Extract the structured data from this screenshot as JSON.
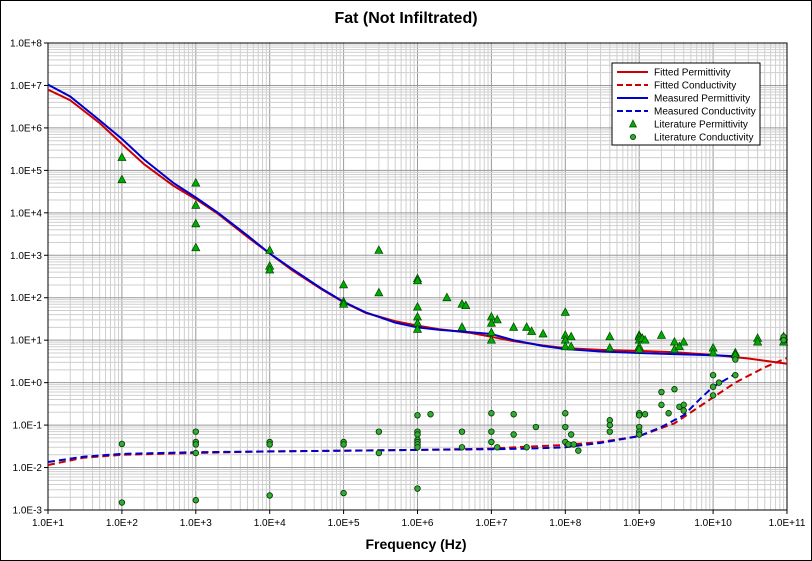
{
  "chart_data": {
    "type": "scatter",
    "title": "Fat (Not Infiltrated)",
    "xlabel": "Frequency (Hz)",
    "ylabel": "",
    "x_scale": "log",
    "y_scale": "log",
    "xlim": [
      10,
      100000000000
    ],
    "ylim": [
      0.001,
      100000000
    ],
    "x_ticks": [
      "1.0E+1",
      "1.0E+2",
      "1.0E+3",
      "1.0E+4",
      "1.0E+5",
      "1.0E+6",
      "1.0E+7",
      "1.0E+8",
      "1.0E+9",
      "1.0E+10",
      "1.0E+11"
    ],
    "y_ticks": [
      "1.0E-3",
      "1.0E-2",
      "1.0E-1",
      "1.0E+0",
      "1.0E+1",
      "1.0E+2",
      "1.0E+3",
      "1.0E+4",
      "1.0E+5",
      "1.0E+6",
      "1.0E+7",
      "1.0E+8"
    ],
    "grid": true,
    "legend_position": "top-right",
    "series": [
      {
        "name": "Fitted Permittivity",
        "style": "line",
        "color": "#cc0000",
        "dash": false,
        "points": [
          [
            10,
            8000000.0
          ],
          [
            20,
            4500000.0
          ],
          [
            50,
            1300000.0
          ],
          [
            100,
            420000.0
          ],
          [
            200,
            140000.0
          ],
          [
            500,
            43000.0
          ],
          [
            1000,
            21000.0
          ],
          [
            2000,
            9500.0
          ],
          [
            5000,
            2700.0
          ],
          [
            10000,
            1100.0
          ],
          [
            20000,
            450.0
          ],
          [
            50000,
            160.0
          ],
          [
            100000,
            78.0
          ],
          [
            200000,
            44.0
          ],
          [
            500000,
            28.0
          ],
          [
            1000000,
            22.0
          ],
          [
            2000000,
            18.0
          ],
          [
            5000000,
            15.0
          ],
          [
            10000000,
            12.0
          ],
          [
            20000000,
            9.5
          ],
          [
            50000000,
            7.5
          ],
          [
            100000000,
            6.5
          ],
          [
            300000000,
            5.9
          ],
          [
            1000000000,
            5.6
          ],
          [
            3000000000,
            5.2
          ],
          [
            10000000000,
            4.5
          ],
          [
            30000000000,
            3.7
          ],
          [
            100000000000,
            2.8
          ]
        ]
      },
      {
        "name": "Fitted Conductivity",
        "style": "line",
        "color": "#cc0000",
        "dash": true,
        "points": [
          [
            10,
            0.0115
          ],
          [
            30,
            0.017
          ],
          [
            100,
            0.02
          ],
          [
            1000,
            0.022
          ],
          [
            10000,
            0.024
          ],
          [
            100000,
            0.025
          ],
          [
            1000000,
            0.026
          ],
          [
            10000000,
            0.028
          ],
          [
            30000000,
            0.031
          ],
          [
            100000000,
            0.034
          ],
          [
            300000000,
            0.04
          ],
          [
            1000000000,
            0.055
          ],
          [
            3000000000,
            0.11
          ],
          [
            5000000000,
            0.2
          ],
          [
            10000000000,
            0.45
          ],
          [
            20000000000,
            1.0
          ],
          [
            50000000000,
            2.3
          ],
          [
            100000000000,
            3.8
          ]
        ]
      },
      {
        "name": "Measured Permittivity",
        "style": "line",
        "color": "#0000cc",
        "dash": false,
        "points": [
          [
            10,
            10500000.0
          ],
          [
            20,
            5500000.0
          ],
          [
            50,
            1500000.0
          ],
          [
            100,
            550000.0
          ],
          [
            200,
            180000.0
          ],
          [
            500,
            50000.0
          ],
          [
            1000,
            23000.0
          ],
          [
            2000,
            10000.0
          ],
          [
            5000,
            2900.0
          ],
          [
            10000,
            1100.0
          ],
          [
            20000,
            480.0
          ],
          [
            50000,
            165.0
          ],
          [
            100000,
            80.0
          ],
          [
            200000,
            45.0
          ],
          [
            500000,
            26.0
          ],
          [
            1000000,
            20.0
          ],
          [
            2000000,
            17.5
          ],
          [
            5000000,
            15.5
          ],
          [
            10000000,
            14.0
          ],
          [
            20000000,
            10.0
          ],
          [
            50000000,
            7.3
          ],
          [
            100000000,
            6.2
          ],
          [
            300000000,
            5.4
          ],
          [
            1000000000,
            5.0
          ],
          [
            3000000000,
            4.7
          ],
          [
            10000000000,
            4.4
          ],
          [
            20000000000,
            4.2
          ]
        ]
      },
      {
        "name": "Measured Conductivity",
        "style": "line",
        "color": "#0000cc",
        "dash": true,
        "points": [
          [
            10,
            0.0135
          ],
          [
            30,
            0.018
          ],
          [
            100,
            0.021
          ],
          [
            1000,
            0.023
          ],
          [
            10000,
            0.024
          ],
          [
            100000,
            0.025
          ],
          [
            1000000,
            0.026
          ],
          [
            10000000,
            0.027
          ],
          [
            30000000,
            0.028
          ],
          [
            100000000,
            0.03
          ],
          [
            300000000,
            0.038
          ],
          [
            1000000000,
            0.055
          ],
          [
            2000000000,
            0.09
          ],
          [
            4000000000,
            0.17
          ],
          [
            7000000000,
            0.45
          ],
          [
            10000000000,
            0.8
          ],
          [
            20000000000,
            1.6
          ]
        ]
      },
      {
        "name": "Literature Permittivity",
        "style": "triangle",
        "color": "#00aa00",
        "points": [
          [
            100,
            200000.0
          ],
          [
            100,
            60000.0
          ],
          [
            1000,
            50000.0
          ],
          [
            1000,
            15000.0
          ],
          [
            1000,
            5500.0
          ],
          [
            1000,
            1500.0
          ],
          [
            10000,
            1300.0
          ],
          [
            10000,
            550.0
          ],
          [
            10000,
            450.0
          ],
          [
            100000,
            200.0
          ],
          [
            100000,
            80.0
          ],
          [
            100000,
            70.0
          ],
          [
            300000,
            1300.0
          ],
          [
            300000,
            130.0
          ],
          [
            1000000,
            280.0
          ],
          [
            1000000,
            250.0
          ],
          [
            1000000,
            60.0
          ],
          [
            1000000,
            35.0
          ],
          [
            1000000,
            25.0
          ],
          [
            1000000,
            18.0
          ],
          [
            2500000,
            100.0
          ],
          [
            4000000,
            20.0
          ],
          [
            4000000,
            70.0
          ],
          [
            4500000,
            65.0
          ],
          [
            10000000,
            35.0
          ],
          [
            10000000,
            25.0
          ],
          [
            10000000,
            15.0
          ],
          [
            10000000,
            10.0
          ],
          [
            12000000,
            30.0
          ],
          [
            20000000,
            20.0
          ],
          [
            30000000,
            20.0
          ],
          [
            35000000,
            16.0
          ],
          [
            50000000,
            14.0
          ],
          [
            100000000,
            45.0
          ],
          [
            100000000,
            13.0
          ],
          [
            100000000,
            10.0
          ],
          [
            100000000,
            7.0
          ],
          [
            120000000,
            12.0
          ],
          [
            120000000,
            7.0
          ],
          [
            400000000,
            12.0
          ],
          [
            400000000,
            6.5
          ],
          [
            1000000000,
            13.0
          ],
          [
            1000000000,
            12.0
          ],
          [
            1000000000,
            10.0
          ],
          [
            1000000000,
            7.0
          ],
          [
            1000000000,
            6.0
          ],
          [
            1100000000,
            11.0
          ],
          [
            1200000000,
            10.0
          ],
          [
            2000000000,
            13.0
          ],
          [
            3000000000,
            9.0
          ],
          [
            3000000000,
            6.0
          ],
          [
            3500000000,
            7.0
          ],
          [
            4000000000,
            9.0
          ],
          [
            10000000000,
            6.5
          ],
          [
            10000000000,
            5.0
          ],
          [
            20000000000,
            5.0
          ],
          [
            20000000000,
            4.5
          ],
          [
            40000000000,
            11.0
          ],
          [
            40000000000,
            9.0
          ],
          [
            90000000000,
            12.0
          ],
          [
            90000000000,
            9.0
          ]
        ]
      },
      {
        "name": "Literature Conductivity",
        "style": "circle",
        "color": "#33aa33",
        "points": [
          [
            100,
            0.036
          ],
          [
            100,
            0.0015
          ],
          [
            1000,
            0.07
          ],
          [
            1000,
            0.04
          ],
          [
            1000,
            0.035
          ],
          [
            1000,
            0.022
          ],
          [
            1000,
            0.0017
          ],
          [
            10000,
            0.04
          ],
          [
            10000,
            0.035
          ],
          [
            10000,
            0.0022
          ],
          [
            100000,
            0.04
          ],
          [
            100000,
            0.035
          ],
          [
            100000,
            0.0025
          ],
          [
            300000,
            0.07
          ],
          [
            300000,
            0.022
          ],
          [
            1000000,
            0.17
          ],
          [
            1000000,
            0.07
          ],
          [
            1000000,
            0.06
          ],
          [
            1000000,
            0.045
          ],
          [
            1000000,
            0.04
          ],
          [
            1000000,
            0.035
          ],
          [
            1000000,
            0.03
          ],
          [
            1000000,
            0.0032
          ],
          [
            1500000,
            0.18
          ],
          [
            4000000,
            0.07
          ],
          [
            4000000,
            0.03
          ],
          [
            10000000,
            0.19
          ],
          [
            10000000,
            0.07
          ],
          [
            10000000,
            0.04
          ],
          [
            12000000,
            0.03
          ],
          [
            20000000,
            0.18
          ],
          [
            20000000,
            0.06
          ],
          [
            30000000,
            0.03
          ],
          [
            40000000,
            0.09
          ],
          [
            100000000,
            0.19
          ],
          [
            100000000,
            0.09
          ],
          [
            100000000,
            0.04
          ],
          [
            110000000,
            0.035
          ],
          [
            120000000,
            0.06
          ],
          [
            130000000,
            0.035
          ],
          [
            150000000,
            0.025
          ],
          [
            400000000,
            0.13
          ],
          [
            400000000,
            0.1
          ],
          [
            400000000,
            0.07
          ],
          [
            1000000000,
            0.19
          ],
          [
            1000000000,
            0.17
          ],
          [
            1000000000,
            0.09
          ],
          [
            1000000000,
            0.07
          ],
          [
            1000000000,
            0.06
          ],
          [
            1200000000,
            0.18
          ],
          [
            2000000000,
            0.6
          ],
          [
            2000000000,
            0.3
          ],
          [
            2500000000,
            0.19
          ],
          [
            3000000000,
            0.7
          ],
          [
            3500000000,
            0.27
          ],
          [
            4000000000,
            0.3
          ],
          [
            4000000000,
            0.22
          ],
          [
            10000000000,
            1.5
          ],
          [
            10000000000,
            0.8
          ],
          [
            10000000000,
            0.5
          ],
          [
            12000000000,
            1.0
          ],
          [
            20000000000,
            3.5
          ],
          [
            20000000000,
            1.5
          ],
          [
            90000000000,
            12.0
          ],
          [
            90000000000,
            10.0
          ]
        ]
      }
    ]
  }
}
